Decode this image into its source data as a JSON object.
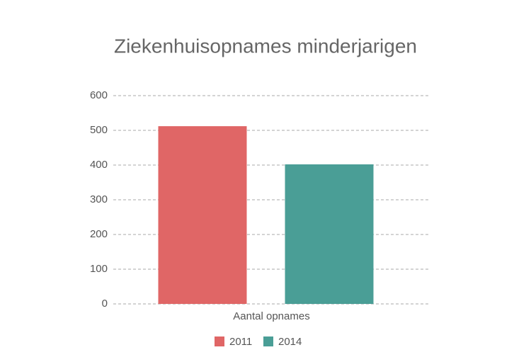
{
  "chart_data": {
    "type": "bar",
    "title": "Ziekenhuisopnames minderjarigen",
    "categories": [
      "Aantal opnames"
    ],
    "series": [
      {
        "name": "2011",
        "color": "#e06666",
        "values": [
          512
        ]
      },
      {
        "name": "2014",
        "color": "#4a9e96",
        "values": [
          402
        ]
      }
    ],
    "ylim": [
      0,
      600
    ],
    "yticks": [
      0,
      100,
      200,
      300,
      400,
      500,
      600
    ],
    "grid": true,
    "legend": "bottom"
  }
}
